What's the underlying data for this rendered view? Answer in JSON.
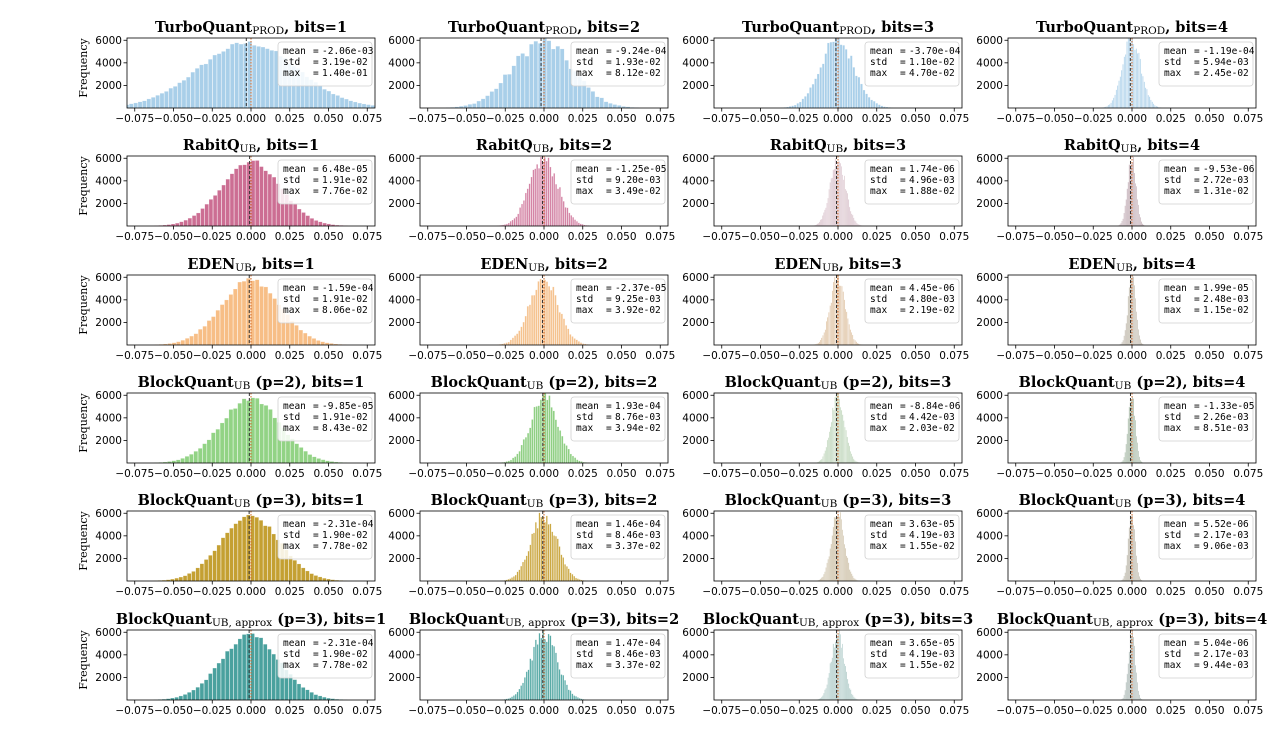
{
  "figure": {
    "ylabel": "Frequency"
  },
  "colors": {
    "turboquant": "#a9cfe9",
    "rabitq_1": "#cc6e93",
    "rabitq_2": "#d484a5",
    "rabitq_3": "#c8a6b4",
    "rabitq_4": "#a58692",
    "eden_1": "#f7be86",
    "eden_2": "#f5c28e",
    "eden_3": "#d8b690",
    "eden_4": "#a49a86",
    "bq2_1": "#92d385",
    "bq2_2": "#8fcf83",
    "bq2_3": "#a8c7a2",
    "bq2_4": "#7f9a7e",
    "bq3_1": "#c4a032",
    "bq3_2": "#cba843",
    "bq3_3": "#b5a27c",
    "bq3_4": "#9c9580",
    "bqa_1": "#4aa19e",
    "bqa_2": "#5aaba7",
    "bqa_3": "#8ab3af",
    "bqa_4": "#8a9c97",
    "mean_line": "#333333",
    "zero_line": "#d2692a",
    "axis": "#000000"
  },
  "chart_data": [
    {
      "type": "histogram",
      "title": "TurboQuant",
      "subscript": "PROD",
      "title_suffix": ", bits=1",
      "ylabel": "Frequency",
      "xlim": [
        -0.08,
        0.08
      ],
      "ylim": [
        0,
        6200
      ],
      "xticks": [
        "−0.075",
        "−0.050",
        "−0.025",
        "0.000",
        "0.025",
        "0.050",
        "0.075"
      ],
      "yticks": [
        "2000",
        "4000",
        "6000"
      ],
      "stats": {
        "mean": "-2.06e-03",
        "std": "3.19e-02",
        "max": "1.40e-01"
      },
      "color_key": "turboquant"
    },
    {
      "type": "histogram",
      "title": "TurboQuant",
      "subscript": "PROD",
      "title_suffix": ", bits=2",
      "ylabel": "",
      "xlim": [
        -0.08,
        0.08
      ],
      "ylim": [
        0,
        6200
      ],
      "xticks": [
        "−0.075",
        "−0.050",
        "−0.025",
        "0.000",
        "0.025",
        "0.050",
        "0.075"
      ],
      "yticks": [
        "2000",
        "4000",
        "6000"
      ],
      "stats": {
        "mean": "-9.24e-04",
        "std": "1.93e-02",
        "max": "8.12e-02"
      },
      "color_key": "turboquant"
    },
    {
      "type": "histogram",
      "title": "TurboQuant",
      "subscript": "PROD",
      "title_suffix": ", bits=3",
      "ylabel": "",
      "xlim": [
        -0.08,
        0.08
      ],
      "ylim": [
        0,
        6200
      ],
      "xticks": [
        "−0.075",
        "−0.050",
        "−0.025",
        "0.000",
        "0.025",
        "0.050",
        "0.075"
      ],
      "yticks": [
        "2000",
        "4000",
        "6000"
      ],
      "stats": {
        "mean": "-3.70e-04",
        "std": "1.10e-02",
        "max": "4.70e-02"
      },
      "color_key": "turboquant"
    },
    {
      "type": "histogram",
      "title": "TurboQuant",
      "subscript": "PROD",
      "title_suffix": ", bits=4",
      "ylabel": "",
      "xlim": [
        -0.08,
        0.08
      ],
      "ylim": [
        0,
        6200
      ],
      "xticks": [
        "−0.075",
        "−0.050",
        "−0.025",
        "0.000",
        "0.025",
        "0.050",
        "0.075"
      ],
      "yticks": [
        "2000",
        "4000",
        "6000"
      ],
      "stats": {
        "mean": "-1.19e-04",
        "std": "5.94e-03",
        "max": "2.45e-02"
      },
      "color_key": "turboquant"
    },
    {
      "type": "histogram",
      "title": "RabitQ",
      "subscript": "UB",
      "title_suffix": ", bits=1",
      "ylabel": "Frequency",
      "xlim": [
        -0.08,
        0.08
      ],
      "ylim": [
        0,
        6200
      ],
      "xticks": [
        "−0.075",
        "−0.050",
        "−0.025",
        "0.000",
        "0.025",
        "0.050",
        "0.075"
      ],
      "yticks": [
        "2000",
        "4000",
        "6000"
      ],
      "stats": {
        "mean": "6.48e-05",
        "std": "1.91e-02",
        "max": "7.76e-02"
      },
      "color_key": "rabitq_1"
    },
    {
      "type": "histogram",
      "title": "RabitQ",
      "subscript": "UB",
      "title_suffix": ", bits=2",
      "ylabel": "",
      "xlim": [
        -0.08,
        0.08
      ],
      "ylim": [
        0,
        6200
      ],
      "xticks": [
        "−0.075",
        "−0.050",
        "−0.025",
        "0.000",
        "0.025",
        "0.050",
        "0.075"
      ],
      "yticks": [
        "2000",
        "4000",
        "6000"
      ],
      "stats": {
        "mean": "-1.25e-05",
        "std": "9.20e-03",
        "max": "3.49e-02"
      },
      "color_key": "rabitq_2"
    },
    {
      "type": "histogram",
      "title": "RabitQ",
      "subscript": "UB",
      "title_suffix": ", bits=3",
      "ylabel": "",
      "xlim": [
        -0.08,
        0.08
      ],
      "ylim": [
        0,
        6200
      ],
      "xticks": [
        "−0.075",
        "−0.050",
        "−0.025",
        "0.000",
        "0.025",
        "0.050",
        "0.075"
      ],
      "yticks": [
        "2000",
        "4000",
        "6000"
      ],
      "stats": {
        "mean": "1.74e-06",
        "std": "4.96e-03",
        "max": "1.88e-02"
      },
      "color_key": "rabitq_3"
    },
    {
      "type": "histogram",
      "title": "RabitQ",
      "subscript": "UB",
      "title_suffix": ", bits=4",
      "ylabel": "",
      "xlim": [
        -0.08,
        0.08
      ],
      "ylim": [
        0,
        6200
      ],
      "xticks": [
        "−0.075",
        "−0.050",
        "−0.025",
        "0.000",
        "0.025",
        "0.050",
        "0.075"
      ],
      "yticks": [
        "2000",
        "4000",
        "6000"
      ],
      "stats": {
        "mean": "-9.53e-06",
        "std": "2.72e-03",
        "max": "1.31e-02"
      },
      "color_key": "rabitq_4"
    },
    {
      "type": "histogram",
      "title": "EDEN",
      "subscript": "UB",
      "title_suffix": ", bits=1",
      "ylabel": "Frequency",
      "xlim": [
        -0.08,
        0.08
      ],
      "ylim": [
        0,
        6200
      ],
      "xticks": [
        "−0.075",
        "−0.050",
        "−0.025",
        "0.000",
        "0.025",
        "0.050",
        "0.075"
      ],
      "yticks": [
        "2000",
        "4000",
        "6000"
      ],
      "stats": {
        "mean": "-1.59e-04",
        "std": "1.91e-02",
        "max": "8.06e-02"
      },
      "color_key": "eden_1"
    },
    {
      "type": "histogram",
      "title": "EDEN",
      "subscript": "UB",
      "title_suffix": ", bits=2",
      "ylabel": "",
      "xlim": [
        -0.08,
        0.08
      ],
      "ylim": [
        0,
        6200
      ],
      "xticks": [
        "−0.075",
        "−0.050",
        "−0.025",
        "0.000",
        "0.025",
        "0.050",
        "0.075"
      ],
      "yticks": [
        "2000",
        "4000",
        "6000"
      ],
      "stats": {
        "mean": "-2.37e-05",
        "std": "9.25e-03",
        "max": "3.92e-02"
      },
      "color_key": "eden_2"
    },
    {
      "type": "histogram",
      "title": "EDEN",
      "subscript": "UB",
      "title_suffix": ", bits=3",
      "ylabel": "",
      "xlim": [
        -0.08,
        0.08
      ],
      "ylim": [
        0,
        6200
      ],
      "xticks": [
        "−0.075",
        "−0.050",
        "−0.025",
        "0.000",
        "0.025",
        "0.050",
        "0.075"
      ],
      "yticks": [
        "2000",
        "4000",
        "6000"
      ],
      "stats": {
        "mean": "4.45e-06",
        "std": "4.80e-03",
        "max": "2.19e-02"
      },
      "color_key": "eden_3"
    },
    {
      "type": "histogram",
      "title": "EDEN",
      "subscript": "UB",
      "title_suffix": ", bits=4",
      "ylabel": "",
      "xlim": [
        -0.08,
        0.08
      ],
      "ylim": [
        0,
        6200
      ],
      "xticks": [
        "−0.075",
        "−0.050",
        "−0.025",
        "0.000",
        "0.025",
        "0.050",
        "0.075"
      ],
      "yticks": [
        "2000",
        "4000",
        "6000"
      ],
      "stats": {
        "mean": "1.99e-05",
        "std": "2.48e-03",
        "max": "1.15e-02"
      },
      "color_key": "eden_4"
    },
    {
      "type": "histogram",
      "title": "BlockQuant",
      "subscript": "UB",
      "title_suffix": " (p=2), bits=1",
      "ylabel": "Frequency",
      "xlim": [
        -0.08,
        0.08
      ],
      "ylim": [
        0,
        6200
      ],
      "xticks": [
        "−0.075",
        "−0.050",
        "−0.025",
        "0.000",
        "0.025",
        "0.050",
        "0.075"
      ],
      "yticks": [
        "2000",
        "4000",
        "6000"
      ],
      "stats": {
        "mean": "-9.85e-05",
        "std": "1.91e-02",
        "max": "8.43e-02"
      },
      "color_key": "bq2_1"
    },
    {
      "type": "histogram",
      "title": "BlockQuant",
      "subscript": "UB",
      "title_suffix": " (p=2), bits=2",
      "ylabel": "",
      "xlim": [
        -0.08,
        0.08
      ],
      "ylim": [
        0,
        6200
      ],
      "xticks": [
        "−0.075",
        "−0.050",
        "−0.025",
        "0.000",
        "0.025",
        "0.050",
        "0.075"
      ],
      "yticks": [
        "2000",
        "4000",
        "6000"
      ],
      "stats": {
        "mean": "1.93e-04",
        "std": "8.76e-03",
        "max": "3.94e-02"
      },
      "color_key": "bq2_2"
    },
    {
      "type": "histogram",
      "title": "BlockQuant",
      "subscript": "UB",
      "title_suffix": " (p=2), bits=3",
      "ylabel": "",
      "xlim": [
        -0.08,
        0.08
      ],
      "ylim": [
        0,
        6200
      ],
      "xticks": [
        "−0.075",
        "−0.050",
        "−0.025",
        "0.000",
        "0.025",
        "0.050",
        "0.075"
      ],
      "yticks": [
        "2000",
        "4000",
        "6000"
      ],
      "stats": {
        "mean": "-8.84e-06",
        "std": "4.42e-03",
        "max": "2.03e-02"
      },
      "color_key": "bq2_3"
    },
    {
      "type": "histogram",
      "title": "BlockQuant",
      "subscript": "UB",
      "title_suffix": " (p=2), bits=4",
      "ylabel": "",
      "xlim": [
        -0.08,
        0.08
      ],
      "ylim": [
        0,
        6200
      ],
      "xticks": [
        "−0.075",
        "−0.050",
        "−0.025",
        "0.000",
        "0.025",
        "0.050",
        "0.075"
      ],
      "yticks": [
        "2000",
        "4000",
        "6000"
      ],
      "stats": {
        "mean": "-1.33e-05",
        "std": "2.26e-03",
        "max": "8.51e-03"
      },
      "color_key": "bq2_4"
    },
    {
      "type": "histogram",
      "title": "BlockQuant",
      "subscript": "UB",
      "title_suffix": " (p=3), bits=1",
      "ylabel": "Frequency",
      "xlim": [
        -0.08,
        0.08
      ],
      "ylim": [
        0,
        6200
      ],
      "xticks": [
        "−0.075",
        "−0.050",
        "−0.025",
        "0.000",
        "0.025",
        "0.050",
        "0.075"
      ],
      "yticks": [
        "2000",
        "4000",
        "6000"
      ],
      "stats": {
        "mean": "-2.31e-04",
        "std": "1.90e-02",
        "max": "7.78e-02"
      },
      "color_key": "bq3_1"
    },
    {
      "type": "histogram",
      "title": "BlockQuant",
      "subscript": "UB",
      "title_suffix": " (p=3), bits=2",
      "ylabel": "",
      "xlim": [
        -0.08,
        0.08
      ],
      "ylim": [
        0,
        6200
      ],
      "xticks": [
        "−0.075",
        "−0.050",
        "−0.025",
        "0.000",
        "0.025",
        "0.050",
        "0.075"
      ],
      "yticks": [
        "2000",
        "4000",
        "6000"
      ],
      "stats": {
        "mean": "1.46e-04",
        "std": "8.46e-03",
        "max": "3.37e-02"
      },
      "color_key": "bq3_2"
    },
    {
      "type": "histogram",
      "title": "BlockQuant",
      "subscript": "UB",
      "title_suffix": " (p=3), bits=3",
      "ylabel": "",
      "xlim": [
        -0.08,
        0.08
      ],
      "ylim": [
        0,
        6200
      ],
      "xticks": [
        "−0.075",
        "−0.050",
        "−0.025",
        "0.000",
        "0.025",
        "0.050",
        "0.075"
      ],
      "yticks": [
        "2000",
        "4000",
        "6000"
      ],
      "stats": {
        "mean": "3.63e-05",
        "std": "4.19e-03",
        "max": "1.55e-02"
      },
      "color_key": "bq3_3"
    },
    {
      "type": "histogram",
      "title": "BlockQuant",
      "subscript": "UB",
      "title_suffix": " (p=3), bits=4",
      "ylabel": "",
      "xlim": [
        -0.08,
        0.08
      ],
      "ylim": [
        0,
        6200
      ],
      "xticks": [
        "−0.075",
        "−0.050",
        "−0.025",
        "0.000",
        "0.025",
        "0.050",
        "0.075"
      ],
      "yticks": [
        "2000",
        "4000",
        "6000"
      ],
      "stats": {
        "mean": "5.52e-06",
        "std": "2.17e-03",
        "max": "9.06e-03"
      },
      "color_key": "bq3_4"
    },
    {
      "type": "histogram",
      "title": "BlockQuant",
      "subscript": "UB, approx",
      "title_suffix": " (p=3), bits=1",
      "ylabel": "Frequency",
      "xlim": [
        -0.08,
        0.08
      ],
      "ylim": [
        0,
        6200
      ],
      "xticks": [
        "−0.075",
        "−0.050",
        "−0.025",
        "0.000",
        "0.025",
        "0.050",
        "0.075"
      ],
      "yticks": [
        "2000",
        "4000",
        "6000"
      ],
      "stats": {
        "mean": "-2.31e-04",
        "std": "1.90e-02",
        "max": "7.78e-02"
      },
      "color_key": "bqa_1"
    },
    {
      "type": "histogram",
      "title": "BlockQuant",
      "subscript": "UB, approx",
      "title_suffix": " (p=3), bits=2",
      "ylabel": "",
      "xlim": [
        -0.08,
        0.08
      ],
      "ylim": [
        0,
        6200
      ],
      "xticks": [
        "−0.075",
        "−0.050",
        "−0.025",
        "0.000",
        "0.025",
        "0.050",
        "0.075"
      ],
      "yticks": [
        "2000",
        "4000",
        "6000"
      ],
      "stats": {
        "mean": "1.47e-04",
        "std": "8.46e-03",
        "max": "3.37e-02"
      },
      "color_key": "bqa_2"
    },
    {
      "type": "histogram",
      "title": "BlockQuant",
      "subscript": "UB, approx",
      "title_suffix": " (p=3), bits=3",
      "ylabel": "",
      "xlim": [
        -0.08,
        0.08
      ],
      "ylim": [
        0,
        6200
      ],
      "xticks": [
        "−0.075",
        "−0.050",
        "−0.025",
        "0.000",
        "0.025",
        "0.050",
        "0.075"
      ],
      "yticks": [
        "2000",
        "4000",
        "6000"
      ],
      "stats": {
        "mean": "3.65e-05",
        "std": "4.19e-03",
        "max": "1.55e-02"
      },
      "color_key": "bqa_3"
    },
    {
      "type": "histogram",
      "title": "BlockQuant",
      "subscript": "UB, approx",
      "title_suffix": " (p=3), bits=4",
      "ylabel": "",
      "xlim": [
        -0.08,
        0.08
      ],
      "ylim": [
        0,
        6200
      ],
      "xticks": [
        "−0.075",
        "−0.050",
        "−0.025",
        "0.000",
        "0.025",
        "0.050",
        "0.075"
      ],
      "yticks": [
        "2000",
        "4000",
        "6000"
      ],
      "stats": {
        "mean": "5.04e-06",
        "std": "2.17e-03",
        "max": "9.44e-03"
      },
      "color_key": "bqa_4"
    }
  ]
}
